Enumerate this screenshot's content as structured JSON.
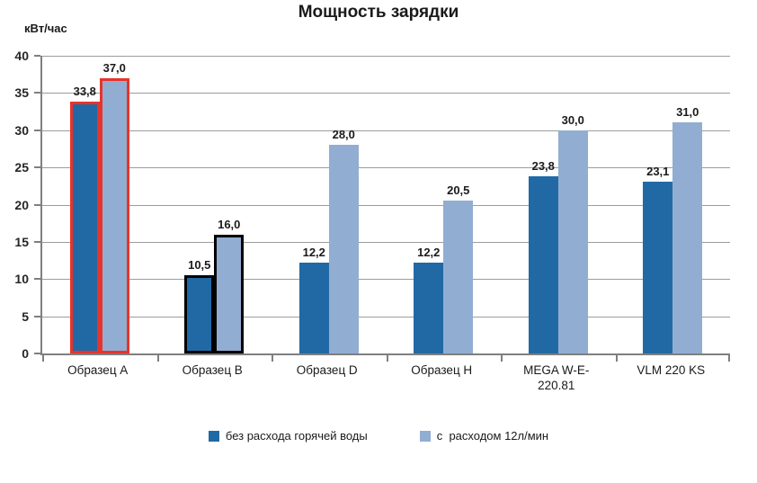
{
  "chart_data": {
    "type": "bar",
    "title": "Мощность зарядки",
    "ylabel": "кВт/час",
    "xlabel": "",
    "ylim": [
      0,
      40
    ],
    "yticks": [
      0,
      5,
      10,
      15,
      20,
      25,
      30,
      35,
      40
    ],
    "grid": true,
    "legend_position": "bottom",
    "categories": [
      "Образец A",
      "Образец B",
      "Образец D",
      "Образец H",
      "MEGA W-E-220.81",
      "VLM 220 KS"
    ],
    "series": [
      {
        "name": "без расхода горячей воды",
        "color": "#2169A5",
        "values": [
          33.8,
          10.5,
          12.2,
          12.2,
          23.8,
          23.1
        ]
      },
      {
        "name": "с  расходом 12л/мин",
        "color": "#92ADD2",
        "values": [
          37.0,
          16.0,
          28.0,
          20.5,
          30.0,
          31.0
        ]
      }
    ],
    "data_labels": [
      [
        "33,8",
        "10,5",
        "12,2",
        "12,2",
        "23,8",
        "23,1"
      ],
      [
        "37,0",
        "16,0",
        "28,0",
        "20,5",
        "30,0",
        "31,0"
      ]
    ],
    "category_highlights": [
      "#E8332B",
      "#000000",
      null,
      null,
      null,
      null
    ],
    "colors": {
      "gridline": "#9C9C9C",
      "axis": "#7F7F7F",
      "text": "#1A1A1A"
    }
  }
}
